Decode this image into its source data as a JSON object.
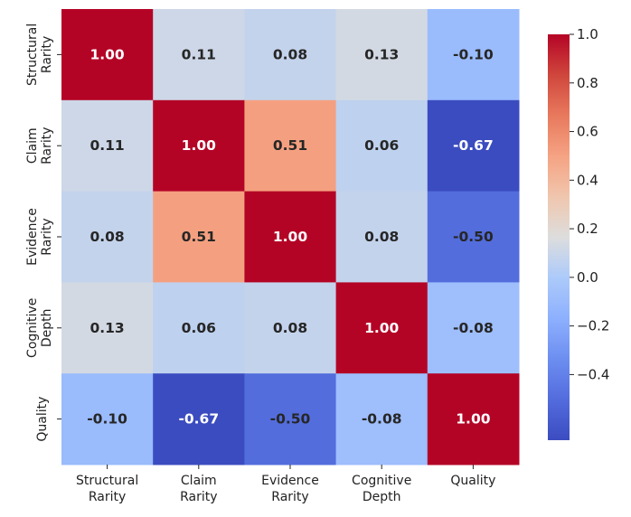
{
  "chart_data": {
    "type": "heatmap",
    "title": "",
    "row_labels": [
      [
        "Structural",
        "Rarity"
      ],
      [
        "Claim",
        "Rarity"
      ],
      [
        "Evidence",
        "Rarity"
      ],
      [
        "Cognitive",
        "Depth"
      ],
      [
        "Quality"
      ]
    ],
    "col_labels": [
      [
        "Structural",
        "Rarity"
      ],
      [
        "Claim",
        "Rarity"
      ],
      [
        "Evidence",
        "Rarity"
      ],
      [
        "Cognitive",
        "Depth"
      ],
      [
        "Quality"
      ]
    ],
    "values": [
      [
        1.0,
        0.11,
        0.08,
        0.13,
        -0.1
      ],
      [
        0.11,
        1.0,
        0.51,
        0.06,
        -0.67
      ],
      [
        0.08,
        0.51,
        1.0,
        0.08,
        -0.5
      ],
      [
        0.13,
        0.06,
        0.08,
        1.0,
        -0.08
      ],
      [
        -0.1,
        -0.67,
        -0.5,
        -0.08,
        1.0
      ]
    ],
    "annotation_format": "0.00",
    "colormap": "coolwarm",
    "colorbar": {
      "range": [
        -0.67,
        1.0
      ],
      "ticks": [
        1.0,
        0.8,
        0.6,
        0.4,
        0.2,
        0.0,
        -0.2,
        -0.4
      ],
      "tick_labels": [
        "1.0",
        "0.8",
        "0.6",
        "0.4",
        "0.2",
        "0.0",
        "−0.2",
        "−0.4"
      ]
    },
    "colors": {
      "cmap_low": "#3b4cc0",
      "cmap_mid": "#dddddd",
      "cmap_high": "#b40426",
      "text_dark": "#262626",
      "text_light": "#ffffff"
    }
  }
}
